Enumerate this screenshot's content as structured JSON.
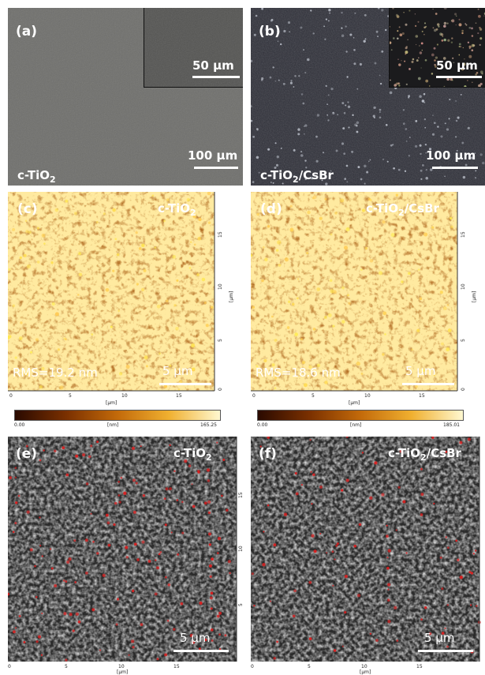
{
  "figure": {
    "panel_a": {
      "letter": "(a)",
      "material": "c-TiO",
      "sub": "2",
      "suffix": "",
      "scale_main": "100 µm",
      "scale_inset": "50 µm"
    },
    "panel_b": {
      "letter": "(b)",
      "material": "c-TiO",
      "sub": "2",
      "suffix": "/CsBr",
      "scale_main": "100 µm",
      "scale_inset": "50 µm"
    },
    "panel_c": {
      "letter": "(c)",
      "material": "c-TiO",
      "sub": "2",
      "suffix": "",
      "rms": "RMS=19.2 nm",
      "scale": "5 µm",
      "colorbar_min": "0.00",
      "colorbar_unit": "[nm]",
      "colorbar_max": "165.25",
      "axis_unit": "[µm]"
    },
    "panel_d": {
      "letter": "(d)",
      "material": "c-TiO",
      "sub": "2",
      "suffix": "/CsBr",
      "rms": "RMS=18.6 nm",
      "scale": "5 µm",
      "colorbar_min": "0.00",
      "colorbar_unit": "[nm]",
      "colorbar_max": "185.01",
      "axis_unit": "[µm]"
    },
    "panel_e": {
      "letter": "(e)",
      "material": "c-TiO",
      "sub": "2",
      "suffix": "",
      "scale": "5 µm",
      "axis_unit": "[µm]"
    },
    "panel_f": {
      "letter": "(f)",
      "material": "c-TiO",
      "sub": "2",
      "suffix": "/CsBr",
      "scale": "5 µm",
      "axis_unit": "[µm]"
    },
    "x_ticks": [
      "0",
      "5",
      "10",
      "15"
    ],
    "y_ticks": [
      "0",
      "5",
      "10",
      "15"
    ]
  },
  "colors": {
    "optical_a": "#6f6f6c",
    "optical_b": "#2e2f38",
    "afm_dark": "#3a1200",
    "afm_mid": "#b05a08",
    "afm_light": "#ffe070",
    "sem_dark": "#2a2a2a",
    "highlight": "#d42020"
  }
}
